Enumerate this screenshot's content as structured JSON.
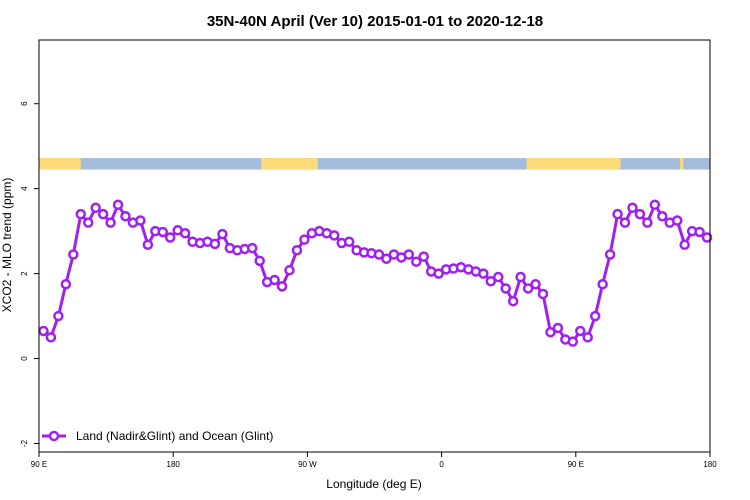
{
  "chart_data": {
    "type": "line",
    "title": "35N-40N April (Ver 10)   2015-01-01 to 2020-12-18",
    "xlabel": "Longitude (deg E)",
    "ylabel": "XCO2 - MLO trend (ppm)",
    "xlim": [
      90,
      540
    ],
    "ylim": [
      -2.2,
      7.5
    ],
    "x_ticks": [
      {
        "value": 90,
        "label": "90 E"
      },
      {
        "value": 180,
        "label": "180"
      },
      {
        "value": 270,
        "label": "90 W"
      },
      {
        "value": 360,
        "label": "0"
      },
      {
        "value": 450,
        "label": "90 E"
      },
      {
        "value": 540,
        "label": "180"
      }
    ],
    "y_ticks": [
      {
        "value": -2,
        "label": "-2"
      },
      {
        "value": 0,
        "label": "0"
      },
      {
        "value": 2,
        "label": "2"
      },
      {
        "value": 4,
        "label": "4"
      },
      {
        "value": 6,
        "label": "6"
      }
    ],
    "grid": false,
    "legend_position": "bottom-left",
    "landmask_band": {
      "y_range": [
        4.45,
        4.72
      ],
      "land_color": "#fedb7a",
      "ocean_color": "#a4bcdc",
      "land_segments": [
        [
          90,
          118
        ],
        [
          239,
          277
        ],
        [
          417,
          480
        ],
        [
          520,
          522
        ]
      ]
    },
    "series": [
      {
        "name": "Land (Nadir&Glint) and Ocean (Glint)",
        "color": "#a020f0",
        "x": [
          93,
          98,
          103,
          108,
          113,
          118,
          123,
          128,
          133,
          138,
          143,
          148,
          153,
          158,
          163,
          168,
          173,
          178,
          183,
          188,
          193,
          198,
          203,
          208,
          213,
          218,
          223,
          228,
          233,
          238,
          243,
          248,
          253,
          258,
          263,
          268,
          273,
          278,
          283,
          288,
          293,
          298,
          303,
          308,
          313,
          318,
          323,
          328,
          333,
          338,
          343,
          348,
          353,
          358,
          363,
          368,
          373,
          378,
          383,
          388,
          393,
          398,
          403,
          408,
          413,
          418,
          423,
          428,
          433,
          438,
          443,
          448,
          453,
          458,
          463,
          468,
          473,
          478,
          483,
          488,
          493,
          498,
          503,
          508,
          513,
          518,
          523,
          528,
          533,
          538
        ],
        "y": [
          0.65,
          0.5,
          1.0,
          1.75,
          2.45,
          3.4,
          3.2,
          3.55,
          3.4,
          3.2,
          3.62,
          3.35,
          3.2,
          3.25,
          2.68,
          3.0,
          2.98,
          2.85,
          3.02,
          2.95,
          2.75,
          2.72,
          2.75,
          2.7,
          2.93,
          2.6,
          2.55,
          2.58,
          2.6,
          2.3,
          1.8,
          1.85,
          1.7,
          2.08,
          2.55,
          2.8,
          2.95,
          3.0,
          2.95,
          2.9,
          2.72,
          2.75,
          2.55,
          2.5,
          2.48,
          2.45,
          2.35,
          2.45,
          2.38,
          2.45,
          2.28,
          2.4,
          2.05,
          2.0,
          2.1,
          2.12,
          2.15,
          2.1,
          2.05,
          2.0,
          1.82,
          1.92,
          1.65,
          1.35,
          1.92,
          1.65,
          1.75,
          1.52,
          0.62,
          0.72,
          0.45,
          0.4,
          0.65,
          0.5,
          1.0,
          1.75,
          2.45,
          3.4,
          3.2,
          3.55,
          3.4,
          3.2,
          3.62,
          3.35,
          3.2,
          3.25,
          2.68,
          3.0,
          2.98,
          2.85
        ]
      }
    ]
  }
}
